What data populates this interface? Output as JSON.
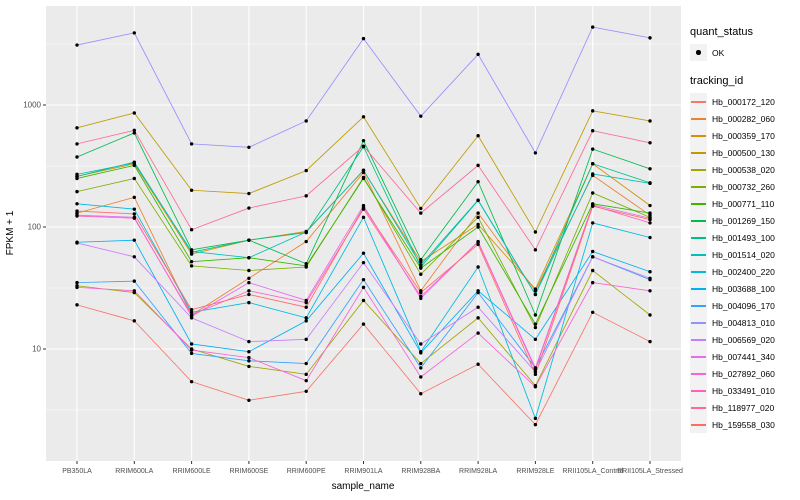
{
  "chart_data": {
    "type": "line",
    "title": "",
    "xlabel": "sample_name",
    "ylabel": "FPKM + 1",
    "y_scale": "log10",
    "grid": true,
    "panel_background": "#EBEBEB",
    "gridline_color": "#FFFFFF",
    "tick_label_color": "#4D4D4D",
    "point_color": "#000000",
    "legend_position": "right",
    "y_ticks": [
      10,
      100,
      1000
    ],
    "y_minor_ticks": [
      3.162,
      31.62,
      316.2,
      3162
    ],
    "ylim": [
      1.2,
      6400
    ],
    "categories": [
      "PB350LA",
      "RRIM600LA",
      "RRIM600LE",
      "RRIM600SE",
      "RRIM600PE",
      "RRIM901LA",
      "RRIM928BA",
      "RRIM928LA",
      "RRIM928LE",
      "RRII105LA_Control",
      "RRII105LA_Stressed"
    ],
    "legend": {
      "quant_status": {
        "title": "quant_status",
        "items": [
          {
            "label": "OK",
            "shape": "point",
            "color": "#000000"
          }
        ]
      },
      "tracking_id_title": "tracking_id"
    },
    "series": [
      {
        "tracking_id": "Hb_000172_120",
        "color": "#F8766D",
        "values": [
          23,
          17,
          5.4,
          3.8,
          4.5,
          16,
          4.3,
          7.5,
          2.4,
          20,
          11.5
        ]
      },
      {
        "tracking_id": "Hb_000282_060",
        "color": "#EA8331",
        "values": [
          130,
          175,
          19,
          38,
          76,
          280,
          30,
          130,
          30,
          265,
          125
        ]
      },
      {
        "tracking_id": "Hb_000359_170",
        "color": "#D89000",
        "values": [
          260,
          330,
          60,
          78,
          92,
          290,
          52,
          105,
          31,
          330,
          150
        ]
      },
      {
        "tracking_id": "Hb_000500_130",
        "color": "#C09B00",
        "values": [
          650,
          860,
          200,
          188,
          290,
          800,
          142,
          560,
          91,
          895,
          740
        ]
      },
      {
        "tracking_id": "Hb_000538_020",
        "color": "#A3A500",
        "values": [
          33,
          29,
          10,
          7.2,
          6.2,
          25,
          7.6,
          18,
          5.0,
          44,
          19
        ]
      },
      {
        "tracking_id": "Hb_000732_260",
        "color": "#7CAE00",
        "values": [
          195,
          250,
          48,
          44,
          47,
          255,
          41,
          120,
          15,
          190,
          120
        ]
      },
      {
        "tracking_id": "Hb_000771_110",
        "color": "#39B600",
        "values": [
          250,
          320,
          52,
          56,
          48,
          250,
          46,
          100,
          16,
          155,
          130
        ]
      },
      {
        "tracking_id": "Hb_001269_150",
        "color": "#00BB4E",
        "values": [
          375,
          590,
          65,
          78,
          50,
          510,
          54,
          235,
          19,
          435,
          300
        ]
      },
      {
        "tracking_id": "Hb_001493_100",
        "color": "#00C087",
        "values": [
          260,
          340,
          62,
          78,
          90,
          455,
          47,
          165,
          28,
          330,
          230
        ]
      },
      {
        "tracking_id": "Hb_001514_020",
        "color": "#00C0B8",
        "values": [
          270,
          335,
          63,
          56,
          91,
          292,
          49,
          166,
          28,
          272,
          228
        ]
      },
      {
        "tracking_id": "Hb_002400_220",
        "color": "#00BAE0",
        "values": [
          155,
          140,
          20,
          24,
          18,
          120,
          9.5,
          47,
          2.7,
          108,
          82
        ]
      },
      {
        "tracking_id": "Hb_003688_100",
        "color": "#00B0F6",
        "values": [
          75,
          78,
          11,
          9.5,
          17,
          61,
          9.3,
          30,
          12,
          63,
          43
        ]
      },
      {
        "tracking_id": "Hb_004096_170",
        "color": "#35A2FF",
        "values": [
          35,
          36,
          9.2,
          8.0,
          7.6,
          37,
          7.0,
          29,
          7.0,
          57,
          37
        ]
      },
      {
        "tracking_id": "Hb_004813_010",
        "color": "#9590FF",
        "values": [
          3100,
          3900,
          480,
          450,
          740,
          3500,
          810,
          2600,
          405,
          4350,
          3550
        ]
      },
      {
        "tracking_id": "Hb_006569_020",
        "color": "#C77CFF",
        "values": [
          74,
          57,
          18,
          11.5,
          12,
          51,
          11,
          22,
          6.5,
          57,
          38
        ]
      },
      {
        "tracking_id": "Hb_007441_340",
        "color": "#E76BF3",
        "values": [
          125,
          120,
          18.5,
          35,
          25,
          150,
          26,
          76,
          7.0,
          152,
          118
        ]
      },
      {
        "tracking_id": "Hb_027892_060",
        "color": "#FA62DB",
        "values": [
          32,
          30,
          9.8,
          8.5,
          5.5,
          32,
          5.9,
          13.5,
          4.9,
          35,
          30
        ]
      },
      {
        "tracking_id": "Hb_033491_010",
        "color": "#FF62BC",
        "values": [
          123,
          118,
          19,
          30,
          24,
          140,
          27,
          75,
          6.8,
          150,
          108
        ]
      },
      {
        "tracking_id": "Hb_118977_020",
        "color": "#FF6A98",
        "values": [
          480,
          620,
          95,
          143,
          180,
          460,
          130,
          320,
          65,
          615,
          490
        ]
      },
      {
        "tracking_id": "Hb_159558_030",
        "color": "#FF6C67",
        "values": [
          135,
          128,
          21,
          28,
          22,
          145,
          29,
          72,
          6.2,
          148,
          115
        ]
      }
    ]
  }
}
